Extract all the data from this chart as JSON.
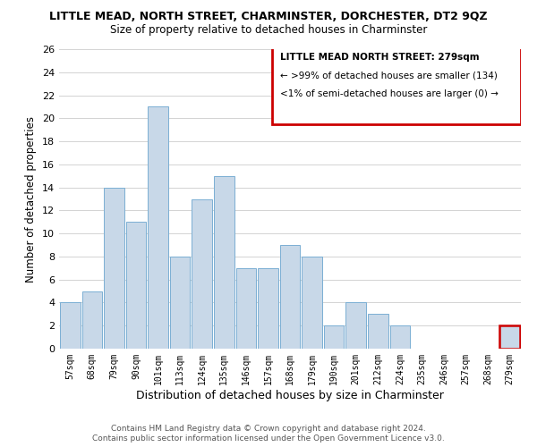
{
  "title": "LITTLE MEAD, NORTH STREET, CHARMINSTER, DORCHESTER, DT2 9QZ",
  "subtitle": "Size of property relative to detached houses in Charminster",
  "xlabel": "Distribution of detached houses by size in Charminster",
  "ylabel": "Number of detached properties",
  "bins": [
    "57sqm",
    "68sqm",
    "79sqm",
    "90sqm",
    "101sqm",
    "113sqm",
    "124sqm",
    "135sqm",
    "146sqm",
    "157sqm",
    "168sqm",
    "179sqm",
    "190sqm",
    "201sqm",
    "212sqm",
    "224sqm",
    "235sqm",
    "246sqm",
    "257sqm",
    "268sqm",
    "279sqm"
  ],
  "values": [
    4,
    5,
    14,
    11,
    21,
    8,
    13,
    15,
    7,
    7,
    9,
    8,
    2,
    4,
    3,
    2,
    0,
    0,
    0,
    0,
    2
  ],
  "bar_color": "#c8d8e8",
  "bar_edge_color": "#7bafd4",
  "highlight_index": 20,
  "highlight_color": "#c8d8e8",
  "highlight_edge_color": "#cc0000",
  "box_text_line1": "LITTLE MEAD NORTH STREET: 279sqm",
  "box_text_line2": "← >99% of detached houses are smaller (134)",
  "box_text_line3": "<1% of semi-detached houses are larger (0) →",
  "box_edge_color": "#cc0000",
  "ylim": [
    0,
    26
  ],
  "yticks": [
    0,
    2,
    4,
    6,
    8,
    10,
    12,
    14,
    16,
    18,
    20,
    22,
    24,
    26
  ],
  "footer_line1": "Contains HM Land Registry data © Crown copyright and database right 2024.",
  "footer_line2": "Contains public sector information licensed under the Open Government Licence v3.0.",
  "background_color": "#ffffff",
  "grid_color": "#cccccc"
}
